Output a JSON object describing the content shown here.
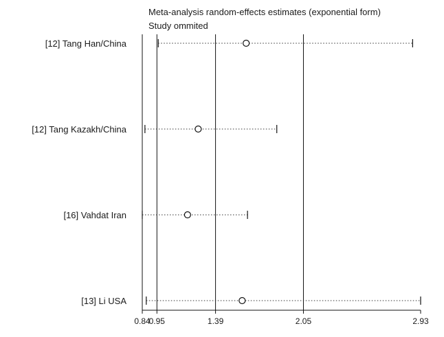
{
  "chart_data": {
    "type": "forest-sensitivity",
    "title": "Meta-analysis random-effects estimates (exponential form)",
    "subtitle": "Study ommited",
    "x_ticks": [
      0.84,
      0.95,
      1.39,
      2.05,
      2.93
    ],
    "x_tick_labels": [
      "0.84",
      "0.95",
      "1.39",
      "2.05",
      "2.93"
    ],
    "xlim": [
      0.84,
      2.93
    ],
    "reference_lines": [
      0.95,
      1.39,
      2.05
    ],
    "studies": [
      {
        "label": "[12] Tang Han/China",
        "estimate": 1.62,
        "lower": 0.96,
        "upper": 2.87
      },
      {
        "label": "[12] Tang Kazakh/China",
        "estimate": 1.26,
        "lower": 0.86,
        "upper": 1.85
      },
      {
        "label": "[16] Vahdat Iran",
        "estimate": 1.18,
        "lower": 0.84,
        "upper": 1.63
      },
      {
        "label": "[13] Li USA",
        "estimate": 1.59,
        "lower": 0.87,
        "upper": 2.93
      }
    ]
  }
}
